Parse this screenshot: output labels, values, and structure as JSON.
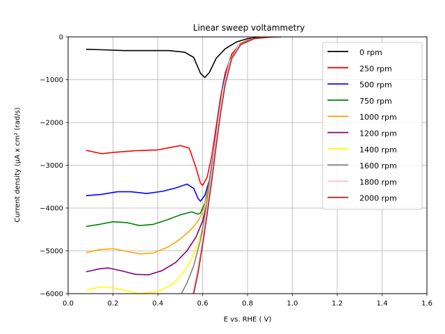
{
  "chart_data": {
    "type": "line",
    "title": "Linear sweep voltammetry",
    "xlabel": "E vs. RHE ( V)",
    "ylabel": "Current density (μA x  cm² (rad/s)",
    "xlim": [
      0.0,
      1.6
    ],
    "ylim": [
      -6000,
      0
    ],
    "xticks": [
      0.0,
      0.2,
      0.4,
      0.6,
      0.8,
      1.0,
      1.2,
      1.4,
      1.6
    ],
    "xtick_labels": [
      "0.0",
      "0.2",
      "0.4",
      "0.6",
      "0.8",
      "1.0",
      "1.2",
      "1.4",
      "1.6"
    ],
    "yticks": [
      0,
      -1000,
      -2000,
      -3000,
      -4000,
      -5000,
      -6000
    ],
    "ytick_labels": [
      "0",
      "−1000",
      "−2000",
      "−3000",
      "−4000",
      "−5000",
      "−6000"
    ],
    "grid": true,
    "legend_position": "top-right",
    "series": [
      {
        "name": "0 rpm",
        "color": "#000000",
        "points": [
          [
            0.08,
            -290
          ],
          [
            0.15,
            -300
          ],
          [
            0.25,
            -320
          ],
          [
            0.35,
            -320
          ],
          [
            0.45,
            -320
          ],
          [
            0.52,
            -360
          ],
          [
            0.56,
            -480
          ],
          [
            0.59,
            -850
          ],
          [
            0.61,
            -950
          ],
          [
            0.63,
            -830
          ],
          [
            0.66,
            -500
          ],
          [
            0.7,
            -280
          ],
          [
            0.75,
            -120
          ],
          [
            0.8,
            -40
          ],
          [
            0.85,
            -5
          ],
          [
            0.95,
            0
          ]
        ]
      },
      {
        "name": "250 rpm",
        "color": "#ff0000",
        "points": [
          [
            0.08,
            -2650
          ],
          [
            0.15,
            -2730
          ],
          [
            0.2,
            -2700
          ],
          [
            0.3,
            -2660
          ],
          [
            0.4,
            -2640
          ],
          [
            0.45,
            -2590
          ],
          [
            0.5,
            -2540
          ],
          [
            0.54,
            -2600
          ],
          [
            0.57,
            -3050
          ],
          [
            0.59,
            -3420
          ],
          [
            0.6,
            -3470
          ],
          [
            0.62,
            -3280
          ],
          [
            0.64,
            -2800
          ],
          [
            0.66,
            -2100
          ],
          [
            0.68,
            -1400
          ],
          [
            0.7,
            -850
          ],
          [
            0.73,
            -400
          ],
          [
            0.77,
            -150
          ],
          [
            0.82,
            -40
          ],
          [
            0.88,
            -5
          ],
          [
            0.95,
            0
          ]
        ]
      },
      {
        "name": "500 rpm",
        "color": "#0000ff",
        "points": [
          [
            0.08,
            -3710
          ],
          [
            0.15,
            -3680
          ],
          [
            0.22,
            -3620
          ],
          [
            0.28,
            -3620
          ],
          [
            0.35,
            -3660
          ],
          [
            0.42,
            -3610
          ],
          [
            0.48,
            -3530
          ],
          [
            0.53,
            -3440
          ],
          [
            0.56,
            -3540
          ],
          [
            0.58,
            -3780
          ],
          [
            0.59,
            -3840
          ],
          [
            0.61,
            -3700
          ],
          [
            0.63,
            -3350
          ],
          [
            0.65,
            -2700
          ],
          [
            0.67,
            -1850
          ],
          [
            0.69,
            -1150
          ],
          [
            0.72,
            -560
          ],
          [
            0.76,
            -200
          ],
          [
            0.82,
            -50
          ],
          [
            0.88,
            -5
          ],
          [
            0.95,
            0
          ]
        ]
      },
      {
        "name": "750 rpm",
        "color": "#008000",
        "points": [
          [
            0.08,
            -4430
          ],
          [
            0.14,
            -4380
          ],
          [
            0.2,
            -4320
          ],
          [
            0.26,
            -4340
          ],
          [
            0.32,
            -4410
          ],
          [
            0.38,
            -4380
          ],
          [
            0.45,
            -4260
          ],
          [
            0.5,
            -4160
          ],
          [
            0.55,
            -4090
          ],
          [
            0.58,
            -4140
          ],
          [
            0.59,
            -4120
          ],
          [
            0.61,
            -3880
          ],
          [
            0.63,
            -3400
          ],
          [
            0.65,
            -2750
          ],
          [
            0.67,
            -1900
          ],
          [
            0.69,
            -1200
          ],
          [
            0.72,
            -580
          ],
          [
            0.76,
            -210
          ],
          [
            0.82,
            -50
          ],
          [
            0.88,
            -5
          ],
          [
            0.95,
            0
          ]
        ]
      },
      {
        "name": "1000 rpm",
        "color": "#ffa500",
        "points": [
          [
            0.08,
            -5040
          ],
          [
            0.14,
            -4970
          ],
          [
            0.2,
            -4950
          ],
          [
            0.26,
            -5010
          ],
          [
            0.32,
            -5070
          ],
          [
            0.38,
            -5050
          ],
          [
            0.45,
            -4900
          ],
          [
            0.5,
            -4720
          ],
          [
            0.55,
            -4490
          ],
          [
            0.58,
            -4300
          ],
          [
            0.6,
            -4100
          ],
          [
            0.62,
            -3700
          ],
          [
            0.64,
            -3100
          ],
          [
            0.66,
            -2350
          ],
          [
            0.68,
            -1600
          ],
          [
            0.7,
            -1000
          ],
          [
            0.73,
            -450
          ],
          [
            0.77,
            -160
          ],
          [
            0.83,
            -40
          ],
          [
            0.9,
            -5
          ],
          [
            0.95,
            0
          ]
        ]
      },
      {
        "name": "1200 rpm",
        "color": "#800080",
        "points": [
          [
            0.08,
            -5490
          ],
          [
            0.14,
            -5420
          ],
          [
            0.18,
            -5400
          ],
          [
            0.24,
            -5470
          ],
          [
            0.3,
            -5550
          ],
          [
            0.36,
            -5560
          ],
          [
            0.42,
            -5460
          ],
          [
            0.48,
            -5270
          ],
          [
            0.53,
            -5000
          ],
          [
            0.57,
            -4680
          ],
          [
            0.6,
            -4300
          ],
          [
            0.62,
            -3850
          ],
          [
            0.64,
            -3200
          ],
          [
            0.66,
            -2400
          ],
          [
            0.68,
            -1650
          ],
          [
            0.7,
            -1020
          ],
          [
            0.73,
            -460
          ],
          [
            0.77,
            -160
          ],
          [
            0.83,
            -40
          ],
          [
            0.9,
            -5
          ],
          [
            0.95,
            0
          ]
        ]
      },
      {
        "name": "1400 rpm",
        "color": "#ffff00",
        "points": [
          [
            0.08,
            -5910
          ],
          [
            0.12,
            -5870
          ],
          [
            0.16,
            -5840
          ],
          [
            0.22,
            -5880
          ],
          [
            0.28,
            -5960
          ],
          [
            0.32,
            -6000
          ],
          [
            0.4,
            -5950
          ],
          [
            0.46,
            -5800
          ],
          [
            0.5,
            -5600
          ],
          [
            0.54,
            -5300
          ],
          [
            0.57,
            -4950
          ],
          [
            0.6,
            -4450
          ],
          [
            0.62,
            -3900
          ],
          [
            0.64,
            -3250
          ],
          [
            0.66,
            -2450
          ],
          [
            0.68,
            -1680
          ],
          [
            0.7,
            -1040
          ],
          [
            0.73,
            -470
          ],
          [
            0.77,
            -165
          ],
          [
            0.83,
            -40
          ],
          [
            0.9,
            -5
          ],
          [
            0.95,
            0
          ]
        ]
      },
      {
        "name": "1600 rpm",
        "color": "#808080",
        "points": [
          [
            0.505,
            -6000
          ],
          [
            0.53,
            -5750
          ],
          [
            0.56,
            -5350
          ],
          [
            0.59,
            -4750
          ],
          [
            0.61,
            -4150
          ],
          [
            0.63,
            -3500
          ],
          [
            0.65,
            -2700
          ],
          [
            0.67,
            -1900
          ],
          [
            0.69,
            -1200
          ],
          [
            0.72,
            -560
          ],
          [
            0.76,
            -200
          ],
          [
            0.82,
            -50
          ],
          [
            0.9,
            -5
          ],
          [
            0.95,
            0
          ]
        ]
      },
      {
        "name": "1800 rpm",
        "color": "#ffc0cb",
        "points": [
          [
            0.555,
            -6000
          ],
          [
            0.57,
            -5650
          ],
          [
            0.59,
            -5050
          ],
          [
            0.61,
            -4350
          ],
          [
            0.63,
            -3600
          ],
          [
            0.65,
            -2800
          ],
          [
            0.67,
            -1950
          ],
          [
            0.69,
            -1250
          ],
          [
            0.72,
            -580
          ],
          [
            0.76,
            -210
          ],
          [
            0.82,
            -50
          ],
          [
            0.9,
            -5
          ],
          [
            0.95,
            0
          ]
        ]
      },
      {
        "name": "2000 rpm",
        "color": "#a52a2a",
        "points": [
          [
            0.56,
            -6000
          ],
          [
            0.58,
            -5500
          ],
          [
            0.6,
            -4850
          ],
          [
            0.62,
            -4150
          ],
          [
            0.64,
            -3380
          ],
          [
            0.66,
            -2550
          ],
          [
            0.68,
            -1780
          ],
          [
            0.7,
            -1120
          ],
          [
            0.73,
            -500
          ],
          [
            0.77,
            -180
          ],
          [
            0.83,
            -40
          ],
          [
            0.9,
            -5
          ],
          [
            0.95,
            0
          ]
        ]
      }
    ]
  }
}
